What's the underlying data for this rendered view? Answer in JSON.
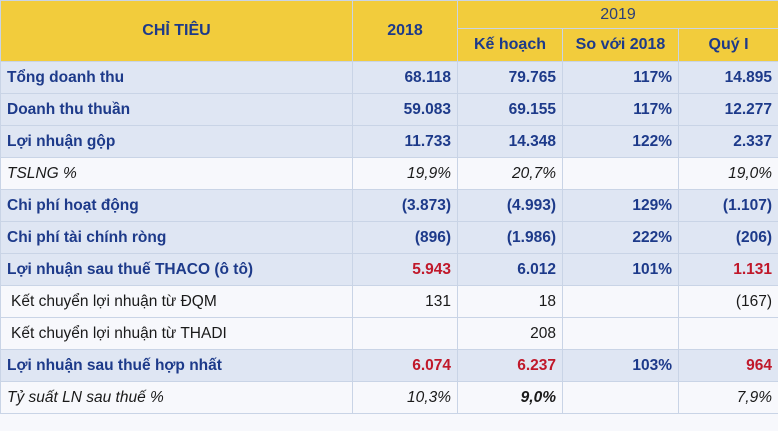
{
  "header": {
    "col_label": "CHỈ TIÊU",
    "col_2018": "2018",
    "group_2019": "2019",
    "col_plan": "Kế hoạch",
    "col_vs2018": "So với 2018",
    "col_q1": "Quý I"
  },
  "rows": [
    {
      "label": "Tổng doanh thu",
      "y2018": "68.118",
      "plan": "79.765",
      "vs": "117%",
      "q1": "14.895"
    },
    {
      "label": "Doanh thu thuần",
      "y2018": "59.083",
      "plan": "69.155",
      "vs": "117%",
      "q1": "12.277"
    },
    {
      "label": "Lợi nhuận gộp",
      "y2018": "11.733",
      "plan": "14.348",
      "vs": "122%",
      "q1": "2.337"
    },
    {
      "label": "TSLNG %",
      "y2018": "19,9%",
      "plan": "20,7%",
      "vs": "",
      "q1": "19,0%"
    },
    {
      "label": "Chi phí hoạt động",
      "y2018": "(3.873)",
      "plan": "(4.993)",
      "vs": "129%",
      "q1": "(1.107)"
    },
    {
      "label": "Chi phí tài chính ròng",
      "y2018": "(896)",
      "plan": "(1.986)",
      "vs": "222%",
      "q1": "(206)"
    },
    {
      "label": "Lợi nhuận sau thuế THACO (ô tô)",
      "y2018": "5.943",
      "plan": "6.012",
      "vs": "101%",
      "q1": "1.131"
    },
    {
      "label": "Kết chuyển lợi nhuận từ ĐQM",
      "y2018": "131",
      "plan": "18",
      "vs": "",
      "q1": "(167)"
    },
    {
      "label": "Kết chuyển lợi nhuận từ THADI",
      "y2018": "",
      "plan": "208",
      "vs": "",
      "q1": ""
    },
    {
      "label": "Lợi nhuận sau thuế hợp nhất",
      "y2018": "6.074",
      "plan": "6.237",
      "vs": "103%",
      "q1": "964"
    },
    {
      "label": "Tỷ suất LN sau thuế %",
      "y2018": "10,3%",
      "plan": "9,0%",
      "vs": "",
      "q1": "7,9%"
    }
  ],
  "colors": {
    "header_bg": "#f2cc3c",
    "header_text": "#1d3a8a",
    "emphasis_red": "#c0182a",
    "row_shade": "#dfe6f3"
  }
}
